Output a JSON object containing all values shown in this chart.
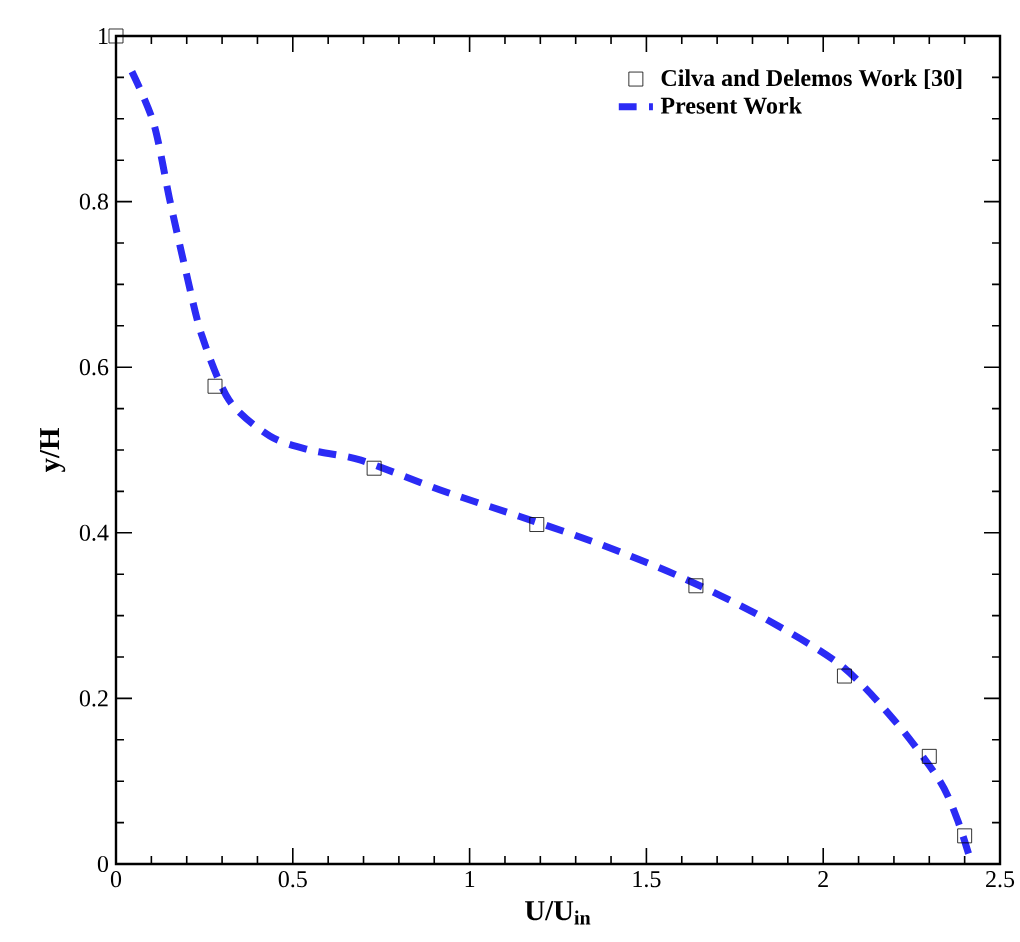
{
  "chart_data": {
    "type": "line",
    "xlabel": "U/U$_{in}$",
    "ylabel": "y/H",
    "xlim": [
      0,
      2.5
    ],
    "ylim": [
      0,
      1
    ],
    "xticks": [
      0,
      0.5,
      1,
      1.5,
      2,
      2.5
    ],
    "yticks": [
      0,
      0.2,
      0.4,
      0.6,
      0.8,
      1
    ],
    "grid": false,
    "legend": "top right",
    "series": [
      {
        "name": "Cilva and Delemos Work [30]",
        "type": "scatter",
        "marker": "square",
        "color": "#000000",
        "x": [
          0,
          0.28,
          0.73,
          1.19,
          1.64,
          2.06,
          2.3,
          2.4
        ],
        "values": [
          1,
          0.577,
          0.478,
          0.41,
          0.336,
          0.227,
          0.13,
          0.034
        ]
      },
      {
        "name": "Present Work",
        "line_style": "dashed",
        "color": "#2b2bf5",
        "x": [
          0.045,
          0.107,
          0.153,
          0.198,
          0.243,
          0.32,
          0.435,
          0.548,
          0.69,
          0.915,
          1.14,
          1.37,
          1.59,
          1.82,
          2.05,
          2.21,
          2.33,
          2.38,
          2.42
        ],
        "values": [
          0.957,
          0.894,
          0.8,
          0.715,
          0.638,
          0.56,
          0.517,
          0.5,
          0.488,
          0.452,
          0.42,
          0.386,
          0.348,
          0.3,
          0.24,
          0.169,
          0.1,
          0.053,
          0
        ]
      }
    ]
  }
}
